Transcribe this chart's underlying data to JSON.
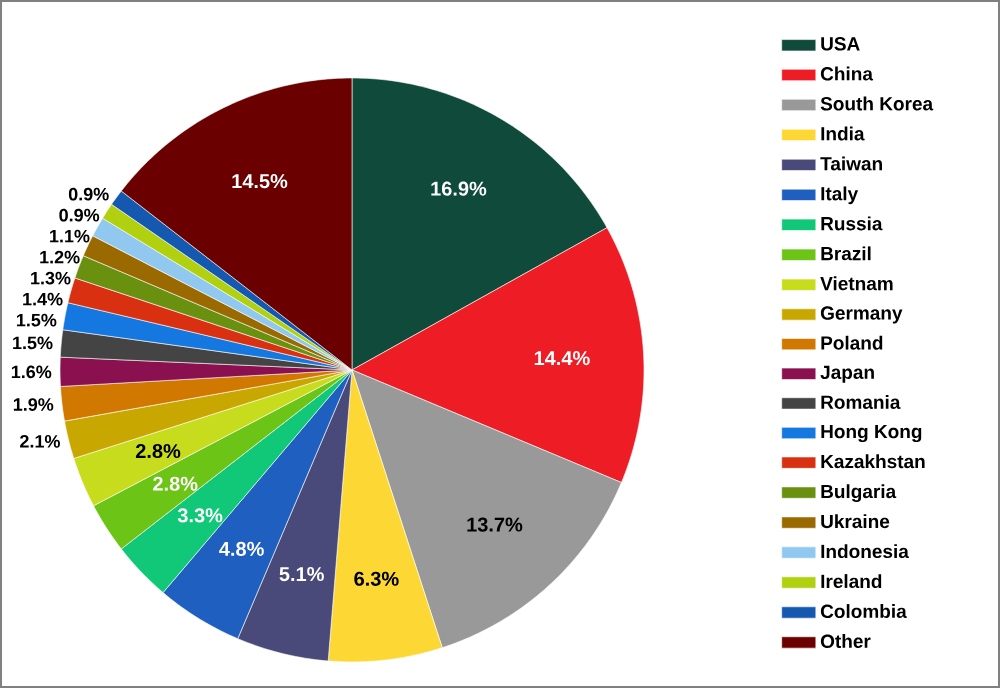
{
  "chart_data": {
    "type": "pie",
    "legend": "right",
    "categories": [
      "USA",
      "China",
      "South Korea",
      "India",
      "Taiwan",
      "Italy",
      "Russia",
      "Brazil",
      "Vietnam",
      "Germany",
      "Poland",
      "Japan",
      "Romania",
      "Hong Kong",
      "Kazakhstan",
      "Bulgaria",
      "Ukraine",
      "Indonesia",
      "Ireland",
      "Colombia",
      "Other"
    ],
    "values": [
      16.9,
      14.4,
      13.7,
      6.3,
      5.1,
      4.8,
      3.3,
      2.8,
      2.8,
      2.1,
      1.9,
      1.6,
      1.5,
      1.5,
      1.4,
      1.3,
      1.2,
      1.1,
      0.9,
      0.9,
      14.5
    ],
    "value_labels": [
      "16.9%",
      "14.4%",
      "13.7%",
      "6.3%",
      "5.1%",
      "4.8%",
      "3.3%",
      "2.8%",
      "2.8%",
      "2.1%",
      "1.9%",
      "1.6%",
      "1.5%",
      "1.5%",
      "1.4%",
      "1.3%",
      "1.2%",
      "1.1%",
      "0.9%",
      "0.9%",
      "14.5%"
    ],
    "colors": [
      "#0f4a3a",
      "#ee1c24",
      "#999999",
      "#fdd835",
      "#4a4a7a",
      "#1f5fbf",
      "#10c878",
      "#6cc417",
      "#c8dc1e",
      "#c8a800",
      "#d07800",
      "#8a1050",
      "#444444",
      "#1478e0",
      "#d83010",
      "#6a9010",
      "#9a6a00",
      "#90c8f0",
      "#b0d010",
      "#1458b0",
      "#6a0000"
    ]
  }
}
